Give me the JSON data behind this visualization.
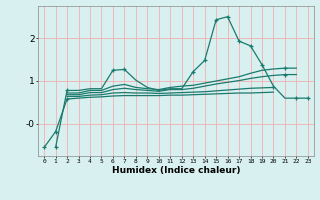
{
  "title": "",
  "xlabel": "Humidex (Indice chaleur)",
  "bg_color": "#d8f0f0",
  "grid_color": "#f0b8b8",
  "line_color": "#1a7a6e",
  "xlim": [
    -0.5,
    23.5
  ],
  "ylim": [
    -0.75,
    2.75
  ],
  "yticks": [
    0.0,
    1.0,
    2.0
  ],
  "ytick_labels": [
    "-0",
    "1",
    "2"
  ],
  "xticks": [
    0,
    1,
    2,
    3,
    4,
    5,
    6,
    7,
    8,
    9,
    10,
    11,
    12,
    13,
    14,
    15,
    16,
    17,
    18,
    19,
    20,
    21,
    22,
    23
  ],
  "series": [
    [
      null,
      -0.55,
      0.78,
      0.78,
      0.82,
      0.82,
      1.25,
      1.27,
      1.02,
      0.85,
      0.78,
      0.82,
      0.82,
      1.22,
      1.48,
      2.43,
      2.5,
      1.93,
      1.82,
      1.38,
      0.88,
      0.6,
      0.6,
      0.6
    ],
    [
      null,
      null,
      0.72,
      0.72,
      0.78,
      0.78,
      0.88,
      0.92,
      0.85,
      0.82,
      0.8,
      0.85,
      0.88,
      0.9,
      0.95,
      1.0,
      1.05,
      1.1,
      1.18,
      1.25,
      1.28,
      1.3,
      1.3,
      null
    ],
    [
      null,
      null,
      0.68,
      0.68,
      0.73,
      0.73,
      0.8,
      0.83,
      0.8,
      0.78,
      0.76,
      0.8,
      0.8,
      0.83,
      0.88,
      0.93,
      0.97,
      1.01,
      1.06,
      1.1,
      1.13,
      1.15,
      1.15,
      null
    ],
    [
      null,
      null,
      0.64,
      0.64,
      0.67,
      0.68,
      0.72,
      0.73,
      0.72,
      0.72,
      0.71,
      0.72,
      0.73,
      0.74,
      0.75,
      0.77,
      0.79,
      0.81,
      0.83,
      0.84,
      0.85,
      null,
      null,
      null
    ],
    [
      -0.55,
      -0.18,
      0.58,
      0.6,
      0.62,
      0.63,
      0.65,
      0.66,
      0.66,
      0.66,
      0.66,
      0.67,
      0.67,
      0.68,
      0.69,
      0.7,
      0.71,
      0.72,
      0.72,
      0.73,
      0.74,
      null,
      null,
      null
    ]
  ],
  "markers_x": [
    [
      1,
      2,
      6,
      7,
      13,
      14,
      15,
      16,
      17,
      18,
      19,
      22,
      23
    ],
    [
      21
    ],
    [
      21
    ],
    [
      20
    ],
    [
      0,
      1,
      2
    ]
  ]
}
